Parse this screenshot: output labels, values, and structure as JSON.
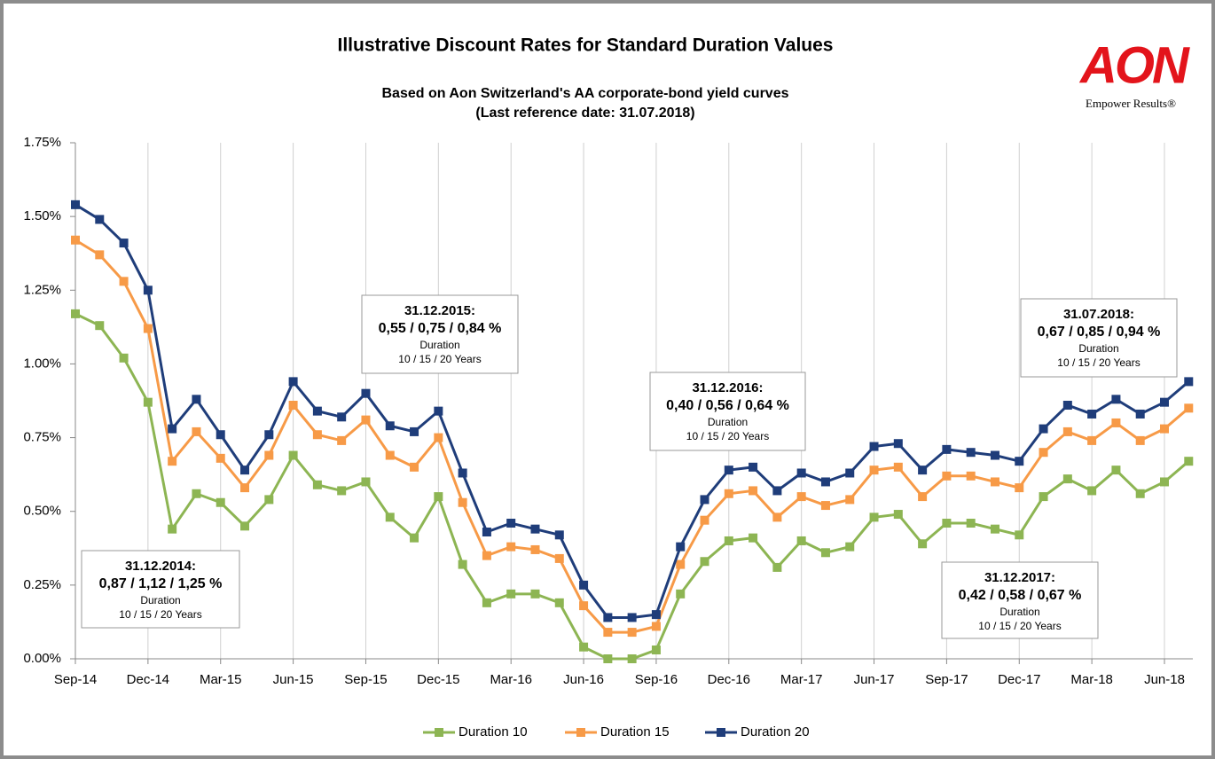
{
  "logo": {
    "name": "AON",
    "tagline": "Empower Results®"
  },
  "chart_data": {
    "type": "line",
    "title": "Illustrative Discount Rates for Standard Duration Values",
    "subtitle": [
      "Based on Aon Switzerland's AA corporate-bond yield curves",
      "(Last reference date: 31.07.2018)"
    ],
    "categories": [
      "Sep-14",
      null,
      null,
      "Dec-14",
      null,
      null,
      "Mar-15",
      null,
      null,
      "Jun-15",
      null,
      null,
      "Sep-15",
      null,
      null,
      "Dec-15",
      null,
      null,
      "Mar-16",
      null,
      null,
      "Jun-16",
      null,
      null,
      "Sep-16",
      null,
      null,
      "Dec-16",
      null,
      null,
      "Mar-17",
      null,
      null,
      "Jun-17",
      null,
      null,
      "Sep-17",
      null,
      null,
      "Dec-17",
      null,
      null,
      "Mar-18",
      null,
      null,
      "Jun-18",
      null
    ],
    "series": [
      {
        "name": "Duration 10",
        "color": "#8db553",
        "values": [
          1.17,
          1.13,
          1.02,
          0.87,
          0.44,
          0.56,
          0.53,
          0.45,
          0.54,
          0.69,
          0.59,
          0.57,
          0.6,
          0.48,
          0.41,
          0.55,
          0.32,
          0.19,
          0.22,
          0.22,
          0.19,
          0.04,
          0.0,
          0.0,
          0.03,
          0.22,
          0.33,
          0.4,
          0.41,
          0.31,
          0.4,
          0.36,
          0.38,
          0.48,
          0.49,
          0.39,
          0.46,
          0.46,
          0.44,
          0.42,
          0.55,
          0.61,
          0.57,
          0.64,
          0.56,
          0.6,
          0.67
        ]
      },
      {
        "name": "Duration 15",
        "color": "#f79a47",
        "values": [
          1.42,
          1.37,
          1.28,
          1.12,
          0.67,
          0.77,
          0.68,
          0.58,
          0.69,
          0.86,
          0.76,
          0.74,
          0.81,
          0.69,
          0.65,
          0.75,
          0.53,
          0.35,
          0.38,
          0.37,
          0.34,
          0.18,
          0.09,
          0.09,
          0.11,
          0.32,
          0.47,
          0.56,
          0.57,
          0.48,
          0.55,
          0.52,
          0.54,
          0.64,
          0.65,
          0.55,
          0.62,
          0.62,
          0.6,
          0.58,
          0.7,
          0.77,
          0.74,
          0.8,
          0.74,
          0.78,
          0.85
        ]
      },
      {
        "name": "Duration 20",
        "color": "#1f3d7a",
        "values": [
          1.54,
          1.49,
          1.41,
          1.25,
          0.78,
          0.88,
          0.76,
          0.64,
          0.76,
          0.94,
          0.84,
          0.82,
          0.9,
          0.79,
          0.77,
          0.84,
          0.63,
          0.43,
          0.46,
          0.44,
          0.42,
          0.25,
          0.14,
          0.14,
          0.15,
          0.38,
          0.54,
          0.64,
          0.65,
          0.57,
          0.63,
          0.6,
          0.63,
          0.72,
          0.73,
          0.64,
          0.71,
          0.7,
          0.69,
          0.67,
          0.78,
          0.86,
          0.83,
          0.88,
          0.83,
          0.87,
          0.94
        ]
      }
    ],
    "ylim": [
      0,
      1.75
    ],
    "yticks": [
      {
        "value": 0,
        "label": "0.00%"
      },
      {
        "value": 0.25,
        "label": "0.25%"
      },
      {
        "value": 0.5,
        "label": "0.50%"
      },
      {
        "value": 0.75,
        "label": "0.75%"
      },
      {
        "value": 1,
        "label": "1.00%"
      },
      {
        "value": 1.25,
        "label": "1.25%"
      },
      {
        "value": 1.5,
        "label": "1.50%"
      },
      {
        "value": 1.75,
        "label": "1.75%"
      }
    ],
    "grid": "x",
    "legend": "bottom",
    "annotations": [
      {
        "title": "31.12.2014:",
        "rates": "0,87 / 1,12 / 1,25 %",
        "label": "Duration",
        "detail": "10 / 15 / 20 Years"
      },
      {
        "title": "31.12.2015:",
        "rates": "0,55 / 0,75 / 0,84 %",
        "label": "Duration",
        "detail": "10 / 15 / 20 Years"
      },
      {
        "title": "31.12.2016:",
        "rates": "0,40 / 0,56 / 0,64 %",
        "label": "Duration",
        "detail": "10 / 15 / 20 Years"
      },
      {
        "title": "31.12.2017:",
        "rates": "0,42 / 0,58 / 0,67 %",
        "label": "Duration",
        "detail": "10 / 15 / 20 Years"
      },
      {
        "title": "31.07.2018:",
        "rates": "0,67 / 0,85 / 0,94 %",
        "label": "Duration",
        "detail": "10 / 15 / 20 Years"
      }
    ]
  }
}
